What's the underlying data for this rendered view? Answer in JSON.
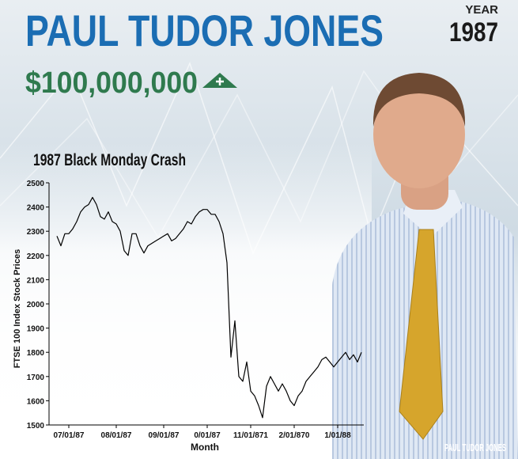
{
  "header": {
    "title": "PAUL TUDOR JONES",
    "year_label": "YEAR",
    "year": "1987",
    "amount": "$100,000,000",
    "watermark": "PAUL TUDOR JONES"
  },
  "chart_data": {
    "type": "line",
    "title": "1987 Black Monday Crash",
    "y_label": "FTSE 100 Index Stock Prices",
    "x_label": "Month",
    "categories": [
      null,
      null,
      null,
      "07/01/87",
      null,
      null,
      null,
      null,
      null,
      null,
      null,
      null,
      null,
      null,
      null,
      "08/01/87",
      null,
      null,
      null,
      null,
      null,
      null,
      null,
      null,
      null,
      null,
      null,
      "09/01/87",
      null,
      null,
      null,
      null,
      null,
      null,
      null,
      null,
      null,
      null,
      "0/01/87",
      null,
      null,
      null,
      null,
      null,
      null,
      null,
      null,
      null,
      null,
      "11/01/871",
      null,
      null,
      null,
      null,
      null,
      null,
      null,
      null,
      null,
      null,
      "2/01/870",
      null,
      null,
      null,
      null,
      null,
      null,
      null,
      null,
      null,
      null,
      "1/01/88",
      null,
      null,
      null,
      null,
      null,
      null
    ],
    "values": [
      2280,
      2240,
      2290,
      2290,
      2310,
      2340,
      2380,
      2400,
      2410,
      2440,
      2410,
      2360,
      2350,
      2380,
      2340,
      2330,
      2300,
      2220,
      2200,
      2290,
      2290,
      2240,
      2210,
      2240,
      2250,
      2260,
      2270,
      2280,
      2290,
      2260,
      2270,
      2290,
      2310,
      2340,
      2330,
      2360,
      2380,
      2390,
      2390,
      2370,
      2370,
      2340,
      2290,
      2170,
      1780,
      1930,
      1700,
      1680,
      1760,
      1640,
      1620,
      1580,
      1530,
      1660,
      1700,
      1670,
      1640,
      1670,
      1640,
      1600,
      1580,
      1620,
      1640,
      1680,
      1700,
      1720,
      1740,
      1770,
      1780,
      1760,
      1740,
      1760,
      1780,
      1800,
      1770,
      1790,
      1760,
      1800
    ],
    "color": "#000000",
    "ylim": [
      1500,
      2500
    ],
    "yticks": [
      1500,
      1600,
      1700,
      1800,
      1900,
      2000,
      2100,
      2200,
      2300,
      2400,
      2500
    ]
  }
}
